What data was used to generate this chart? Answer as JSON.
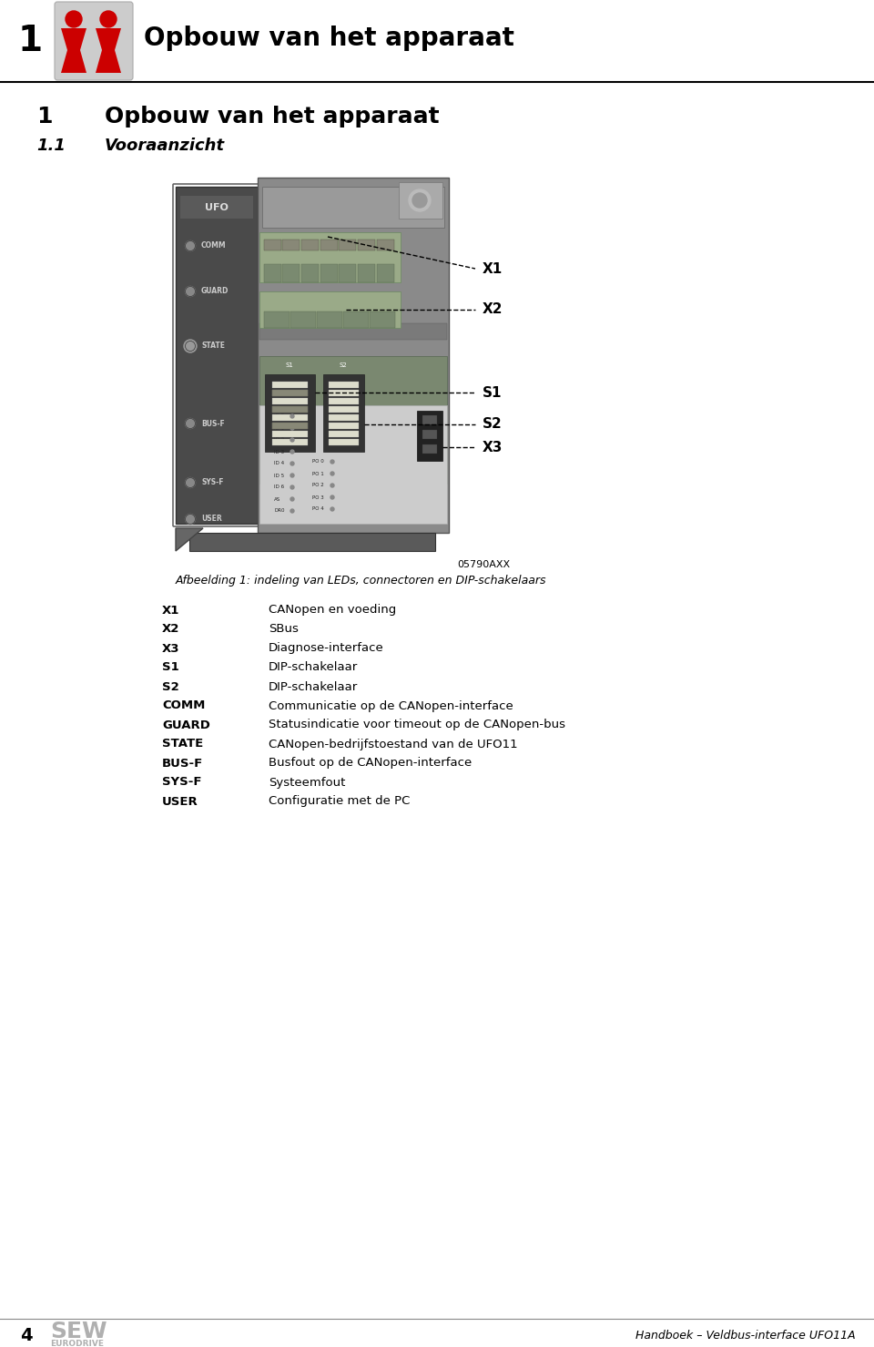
{
  "page_bg": "#ffffff",
  "header_number": "1",
  "header_title": "Opbouw van het apparaat",
  "section_title_num": "1",
  "section_title_text": "Opbouw van het apparaat",
  "section_subtitle": "1.1",
  "section_subtitle_text": "Vooraanzicht",
  "figure_caption_code": "05790AXX",
  "figure_caption": "Afbeelding 1: indeling van LEDs, connectoren en DIP-schakelaars",
  "labels_left": [
    "X1",
    "X2",
    "X3",
    "S1",
    "S2",
    "COMM",
    "GUARD",
    "STATE",
    "BUS-F",
    "SYS-F",
    "USER"
  ],
  "labels_right": [
    "CANopen en voeding",
    "SBus",
    "Diagnose-interface",
    "DIP-schakelaar",
    "DIP-schakelaar",
    "Communicatie op de CANopen-interface",
    "Statusindicatie voor timeout op de CANopen-bus",
    "CANopen-bedrijfstoestand van de UFO11",
    "Busfout op de CANopen-interface",
    "Systeemfout",
    "Configuratie met de PC"
  ],
  "footer_page": "4",
  "footer_right": "Handboek – Veldbus-interface UFO11A",
  "red_color": "#cc0000",
  "device_gray_dark": "#555555",
  "device_gray_mid": "#777777",
  "device_gray_light": "#999999",
  "device_gray_panel": "#888888",
  "icon_bg": "#cccccc"
}
